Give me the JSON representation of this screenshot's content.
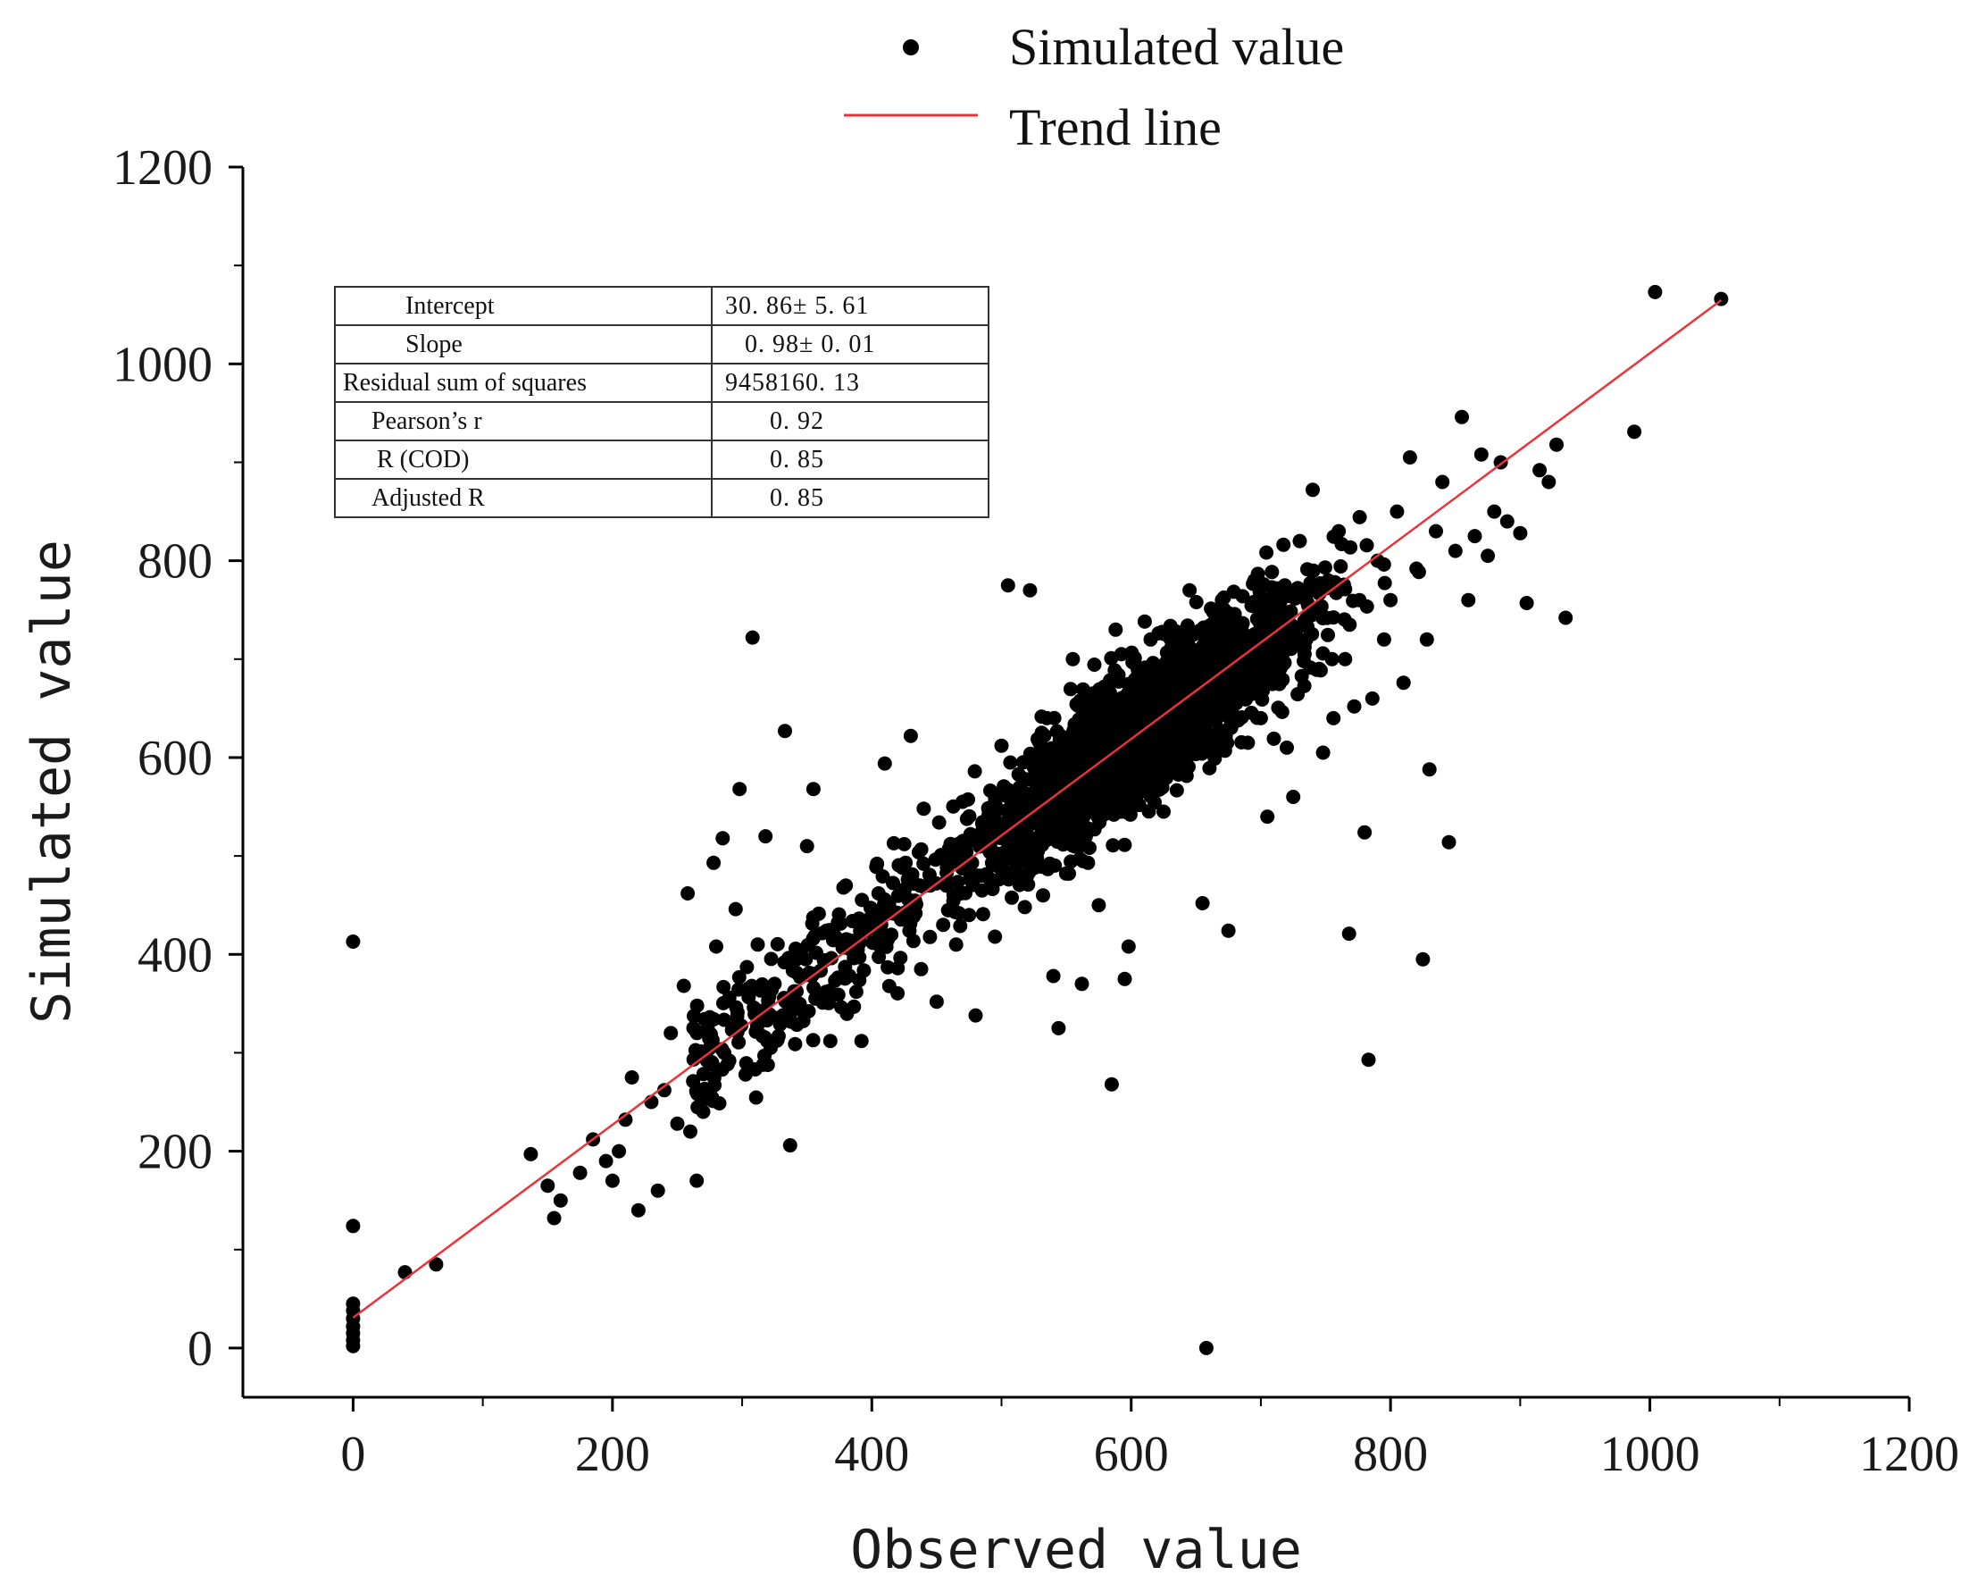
{
  "legend": {
    "items": [
      {
        "label": "Simulated value",
        "marker": "dot",
        "color": "#000000"
      },
      {
        "label": "Trend line",
        "marker": "line",
        "color": "#e8333a"
      }
    ]
  },
  "stats_table": {
    "rows": [
      {
        "label": "Intercept",
        "value": "30. 86± 5. 61"
      },
      {
        "label": "Slope",
        "value": "0. 98± 0. 01"
      },
      {
        "label": "Residual sum of squares",
        "value": "9458160. 13"
      },
      {
        "label": "Pearson’s r",
        "value": "0. 92"
      },
      {
        "label": "R (COD)",
        "value": "0. 85"
      },
      {
        "label": "Adjusted R",
        "value": "0. 85"
      }
    ]
  },
  "chart_data": {
    "type": "scatter",
    "title": "",
    "xlabel": "Observed value",
    "ylabel": "Simulated value",
    "xlim": [
      -85,
      1200
    ],
    "ylim": [
      -50,
      1200
    ],
    "xticks": [
      0,
      200,
      400,
      600,
      800,
      1000,
      1200
    ],
    "yticks": [
      0,
      200,
      400,
      600,
      800,
      1000,
      1200
    ],
    "grid": false,
    "legend_position": "top-center",
    "series": [
      {
        "name": "Simulated value",
        "color": "#000000",
        "points": [
          [
            0,
            413
          ],
          [
            0,
            124
          ],
          [
            0,
            45
          ],
          [
            0,
            38
          ],
          [
            0,
            30
          ],
          [
            0,
            22
          ],
          [
            0,
            15
          ],
          [
            0,
            8
          ],
          [
            0,
            2
          ],
          [
            40,
            77
          ],
          [
            64,
            85
          ],
          [
            137,
            197
          ],
          [
            150,
            165
          ],
          [
            155,
            132
          ],
          [
            160,
            150
          ],
          [
            175,
            178
          ],
          [
            185,
            212
          ],
          [
            195,
            190
          ],
          [
            200,
            170
          ],
          [
            205,
            200
          ],
          [
            210,
            232
          ],
          [
            215,
            275
          ],
          [
            220,
            140
          ],
          [
            230,
            250
          ],
          [
            235,
            160
          ],
          [
            240,
            262
          ],
          [
            245,
            320
          ],
          [
            250,
            228
          ],
          [
            255,
            368
          ],
          [
            258,
            462
          ],
          [
            260,
            220
          ],
          [
            265,
            170
          ],
          [
            270,
            240
          ],
          [
            275,
            262
          ],
          [
            278,
            493
          ],
          [
            280,
            408
          ],
          [
            285,
            518
          ],
          [
            290,
            292
          ],
          [
            295,
            446
          ],
          [
            298,
            568
          ],
          [
            308,
            722
          ],
          [
            312,
            410
          ],
          [
            318,
            520
          ],
          [
            322,
            305
          ],
          [
            325,
            370
          ],
          [
            333,
            627
          ],
          [
            337,
            206
          ],
          [
            345,
            402
          ],
          [
            350,
            510
          ],
          [
            355,
            568
          ],
          [
            362,
            360
          ],
          [
            368,
            312
          ],
          [
            372,
            418
          ],
          [
            380,
            470
          ],
          [
            388,
            362
          ],
          [
            392,
            312
          ],
          [
            398,
            436
          ],
          [
            404,
            492
          ],
          [
            410,
            594
          ],
          [
            415,
            420
          ],
          [
            420,
            386
          ],
          [
            425,
            512
          ],
          [
            430,
            622
          ],
          [
            432,
            452
          ],
          [
            438,
            385
          ],
          [
            440,
            548
          ],
          [
            445,
            470
          ],
          [
            450,
            352
          ],
          [
            455,
            430
          ],
          [
            460,
            497
          ],
          [
            465,
            410
          ],
          [
            470,
            555
          ],
          [
            475,
            440
          ],
          [
            480,
            338
          ],
          [
            485,
            465
          ],
          [
            490,
            519
          ],
          [
            495,
            418
          ],
          [
            500,
            612
          ],
          [
            505,
            775
          ],
          [
            508,
            480
          ],
          [
            512,
            538
          ],
          [
            518,
            448
          ],
          [
            522,
            770
          ],
          [
            525,
            590
          ],
          [
            528,
            505
          ],
          [
            532,
            460
          ],
          [
            535,
            640
          ],
          [
            540,
            378
          ],
          [
            544,
            325
          ],
          [
            548,
            548
          ],
          [
            552,
            482
          ],
          [
            555,
            700
          ],
          [
            558,
            610
          ],
          [
            562,
            370
          ],
          [
            565,
            520
          ],
          [
            570,
            665
          ],
          [
            575,
            450
          ],
          [
            580,
            592
          ],
          [
            585,
            268
          ],
          [
            588,
            730
          ],
          [
            592,
            545
          ],
          [
            595,
            375
          ],
          [
            598,
            408
          ],
          [
            602,
            640
          ],
          [
            605,
            690
          ],
          [
            610,
            566
          ],
          [
            615,
            720
          ],
          [
            620,
            612
          ],
          [
            625,
            545
          ],
          [
            630,
            675
          ],
          [
            635,
            728
          ],
          [
            640,
            597
          ],
          [
            645,
            770
          ],
          [
            650,
            650
          ],
          [
            655,
            452
          ],
          [
            658,
            0
          ],
          [
            660,
            700
          ],
          [
            665,
            620
          ],
          [
            670,
            760
          ],
          [
            675,
            424
          ],
          [
            680,
            680
          ],
          [
            685,
            730
          ],
          [
            690,
            615
          ],
          [
            695,
            780
          ],
          [
            700,
            640
          ],
          [
            705,
            540
          ],
          [
            710,
            700
          ],
          [
            715,
            758
          ],
          [
            720,
            610
          ],
          [
            725,
            560
          ],
          [
            730,
            820
          ],
          [
            735,
            720
          ],
          [
            740,
            872
          ],
          [
            745,
            690
          ],
          [
            748,
            605
          ],
          [
            752,
            780
          ],
          [
            756,
            640
          ],
          [
            760,
            830
          ],
          [
            765,
            700
          ],
          [
            768,
            421
          ],
          [
            772,
            652
          ],
          [
            776,
            760
          ],
          [
            780,
            524
          ],
          [
            783,
            293
          ],
          [
            786,
            660
          ],
          [
            790,
            800
          ],
          [
            795,
            720
          ],
          [
            800,
            760
          ],
          [
            805,
            850
          ],
          [
            810,
            676
          ],
          [
            815,
            905
          ],
          [
            820,
            792
          ],
          [
            825,
            395
          ],
          [
            828,
            720
          ],
          [
            830,
            588
          ],
          [
            835,
            830
          ],
          [
            840,
            880
          ],
          [
            845,
            514
          ],
          [
            850,
            810
          ],
          [
            855,
            946
          ],
          [
            860,
            760
          ],
          [
            865,
            825
          ],
          [
            870,
            908
          ],
          [
            875,
            805
          ],
          [
            880,
            850
          ],
          [
            885,
            900
          ],
          [
            890,
            840
          ],
          [
            900,
            828
          ],
          [
            905,
            757
          ],
          [
            915,
            892
          ],
          [
            922,
            880
          ],
          [
            928,
            918
          ],
          [
            935,
            742
          ],
          [
            988,
            931
          ],
          [
            1004,
            1073
          ],
          [
            1055,
            1066
          ]
        ]
      }
    ],
    "trend_line": {
      "name": "Trend line",
      "color": "#e8333a",
      "x": [
        0,
        1055
      ],
      "y": [
        30.86,
        1064.76
      ]
    }
  }
}
